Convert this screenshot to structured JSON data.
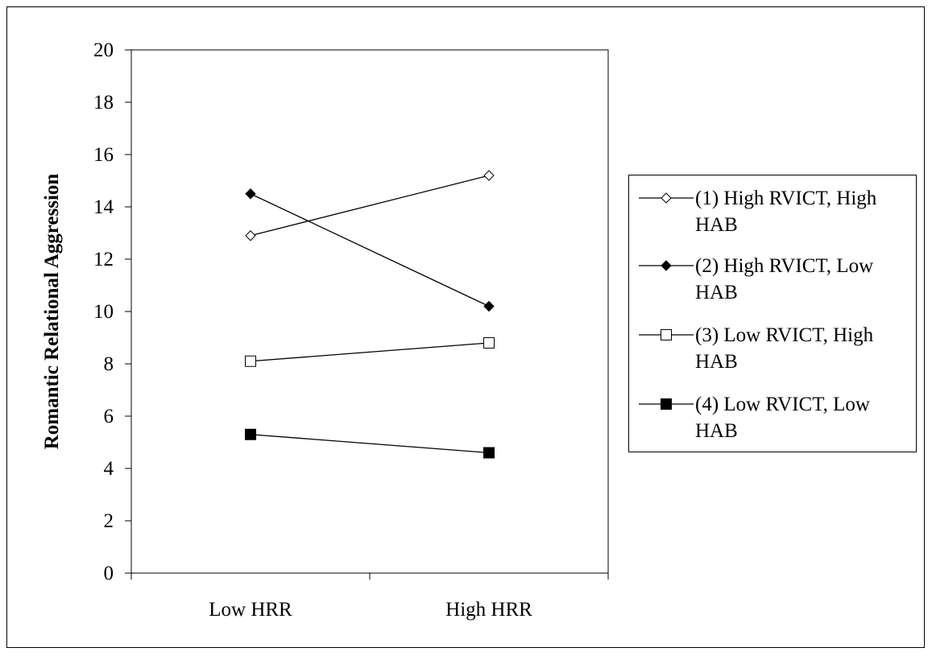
{
  "chart_data": {
    "type": "line",
    "title": "",
    "xlabel": "",
    "ylabel": "Romantic Relational Aggression",
    "categories": [
      "Low HRR",
      "High HRR"
    ],
    "ylim": [
      0,
      20
    ],
    "yticks": [
      "0",
      "2",
      "4",
      "6",
      "8",
      "10",
      "12",
      "14",
      "16",
      "18",
      "20"
    ],
    "grid": false,
    "legend_position": "right",
    "series": [
      {
        "name": "(1) High RVICT, High HAB",
        "values": [
          12.9,
          15.2
        ],
        "marker": "diamond-open",
        "color": "#000000"
      },
      {
        "name": "(2) High RVICT, Low HAB",
        "values": [
          14.5,
          10.2
        ],
        "marker": "diamond-filled",
        "color": "#000000"
      },
      {
        "name": "(3) Low RVICT, High HAB",
        "values": [
          8.1,
          8.8
        ],
        "marker": "square-open",
        "color": "#000000"
      },
      {
        "name": "(4) Low RVICT, Low HAB",
        "values": [
          5.3,
          4.6
        ],
        "marker": "square-filled",
        "color": "#000000"
      }
    ]
  }
}
